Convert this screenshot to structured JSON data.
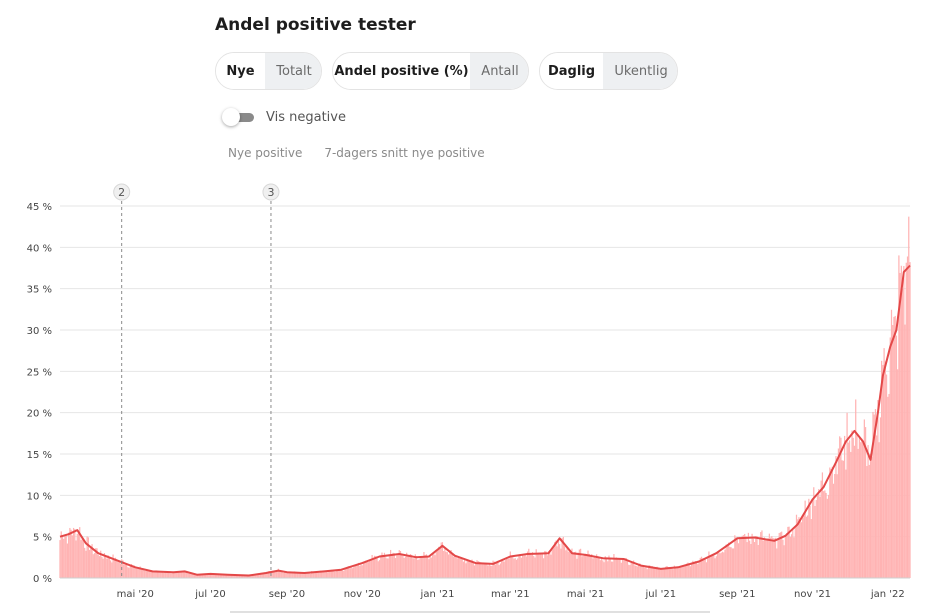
{
  "title": "Andel positive tester",
  "controls": {
    "group1": {
      "options": [
        "Nye",
        "Totalt"
      ],
      "selected": "Nye"
    },
    "group2": {
      "options": [
        "Andel positive (%)",
        "Antall"
      ],
      "selected": "Andel positive (%)"
    },
    "group3": {
      "options": [
        "Daglig",
        "Ukentlig"
      ],
      "selected": "Daglig"
    }
  },
  "toggle": {
    "label": "Vis negative",
    "on": false
  },
  "legend": {
    "bars": "Nye positive",
    "line": "7-dagers snitt nye positive"
  },
  "colors": {
    "bars": "#ffb3b3",
    "line": "#e34848",
    "grid": "#e6e6e6",
    "marker": "#8a8a8a"
  },
  "chart_data": {
    "type": "bar",
    "title": "",
    "xlabel": "",
    "ylabel": "",
    "ylim": [
      0,
      45
    ],
    "y_ticks": [
      "0 %",
      "5 %",
      "10 %",
      "15 %",
      "20 %",
      "25 %",
      "30 %",
      "35 %",
      "40 %",
      "45 %"
    ],
    "y_tick_values": [
      0,
      5,
      10,
      15,
      20,
      25,
      30,
      35,
      40,
      45
    ],
    "x_start": "2020-03-01",
    "x_end": "2022-01-19",
    "x_ticks": [
      {
        "label": "mai '20",
        "date": "2020-05-01"
      },
      {
        "label": "jul '20",
        "date": "2020-07-01"
      },
      {
        "label": "sep '20",
        "date": "2020-09-01"
      },
      {
        "label": "nov '20",
        "date": "2020-11-01"
      },
      {
        "label": "jan '21",
        "date": "2021-01-01"
      },
      {
        "label": "mar '21",
        "date": "2021-03-01"
      },
      {
        "label": "mai '21",
        "date": "2021-05-01"
      },
      {
        "label": "jul '21",
        "date": "2021-07-01"
      },
      {
        "label": "sep '21",
        "date": "2021-09-01"
      },
      {
        "label": "nov '21",
        "date": "2021-11-01"
      },
      {
        "label": "jan '22",
        "date": "2022-01-01"
      }
    ],
    "markers": [
      {
        "label": "2",
        "date": "2020-04-20"
      },
      {
        "label": "3",
        "date": "2020-08-19"
      }
    ],
    "series": [
      {
        "name": "7-dagers snitt nye positive",
        "points": [
          [
            "2020-03-01",
            5.0
          ],
          [
            "2020-03-08",
            5.3
          ],
          [
            "2020-03-15",
            5.8
          ],
          [
            "2020-03-22",
            4.2
          ],
          [
            "2020-04-01",
            3.0
          ],
          [
            "2020-04-15",
            2.2
          ],
          [
            "2020-05-01",
            1.3
          ],
          [
            "2020-05-15",
            0.8
          ],
          [
            "2020-06-01",
            0.7
          ],
          [
            "2020-06-10",
            0.8
          ],
          [
            "2020-06-20",
            0.4
          ],
          [
            "2020-07-01",
            0.5
          ],
          [
            "2020-07-15",
            0.4
          ],
          [
            "2020-08-01",
            0.3
          ],
          [
            "2020-08-15",
            0.6
          ],
          [
            "2020-08-25",
            0.9
          ],
          [
            "2020-09-01",
            0.7
          ],
          [
            "2020-09-15",
            0.6
          ],
          [
            "2020-10-01",
            0.8
          ],
          [
            "2020-10-15",
            1.0
          ],
          [
            "2020-11-01",
            1.8
          ],
          [
            "2020-11-15",
            2.6
          ],
          [
            "2020-12-01",
            2.9
          ],
          [
            "2020-12-15",
            2.5
          ],
          [
            "2020-12-25",
            2.6
          ],
          [
            "2021-01-05",
            3.9
          ],
          [
            "2021-01-15",
            2.7
          ],
          [
            "2021-02-01",
            1.8
          ],
          [
            "2021-02-15",
            1.7
          ],
          [
            "2021-03-01",
            2.6
          ],
          [
            "2021-03-15",
            2.9
          ],
          [
            "2021-04-01",
            3.0
          ],
          [
            "2021-04-10",
            4.8
          ],
          [
            "2021-04-20",
            3.0
          ],
          [
            "2021-05-01",
            2.8
          ],
          [
            "2021-05-15",
            2.4
          ],
          [
            "2021-06-01",
            2.3
          ],
          [
            "2021-06-15",
            1.5
          ],
          [
            "2021-07-01",
            1.1
          ],
          [
            "2021-07-15",
            1.3
          ],
          [
            "2021-08-01",
            2.0
          ],
          [
            "2021-08-15",
            3.0
          ],
          [
            "2021-09-01",
            4.8
          ],
          [
            "2021-09-15",
            4.9
          ],
          [
            "2021-10-01",
            4.5
          ],
          [
            "2021-10-10",
            5.1
          ],
          [
            "2021-10-20",
            6.5
          ],
          [
            "2021-11-01",
            9.5
          ],
          [
            "2021-11-10",
            11.0
          ],
          [
            "2021-11-20",
            14.0
          ],
          [
            "2021-11-28",
            16.5
          ],
          [
            "2021-12-05",
            17.8
          ],
          [
            "2021-12-12",
            16.5
          ],
          [
            "2021-12-18",
            14.3
          ],
          [
            "2021-12-24",
            20.0
          ],
          [
            "2021-12-28",
            24.5
          ],
          [
            "2022-01-03",
            28.0
          ],
          [
            "2022-01-08",
            30.0
          ],
          [
            "2022-01-14",
            37.0
          ],
          [
            "2022-01-19",
            37.8
          ]
        ]
      }
    ]
  }
}
